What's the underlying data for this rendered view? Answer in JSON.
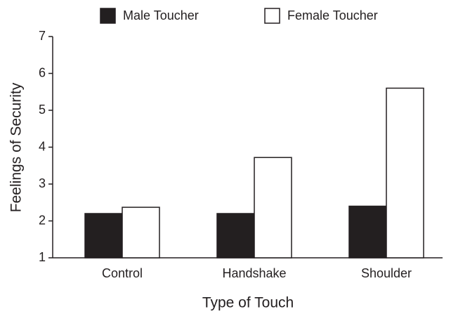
{
  "chart_data": {
    "type": "bar",
    "xlabel": "Type of Touch",
    "ylabel": "Feelings of Security",
    "categories": [
      "Control",
      "Handshake",
      "Shoulder"
    ],
    "series": [
      {
        "name": "Male Toucher",
        "color": "#231f20",
        "values": [
          2.2,
          2.2,
          2.4
        ]
      },
      {
        "name": "Female Toucher",
        "color": "#ffffff",
        "values": [
          2.37,
          3.72,
          5.6
        ]
      }
    ],
    "ylim": [
      1,
      7
    ],
    "yticks": [
      1,
      2,
      3,
      4,
      5,
      6,
      7
    ],
    "legend": "top"
  }
}
